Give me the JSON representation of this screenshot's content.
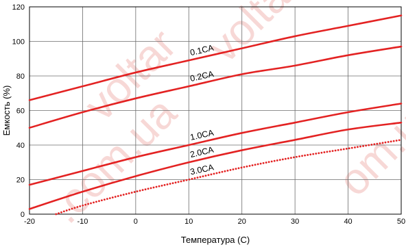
{
  "chart_data": {
    "type": "line",
    "xlabel": "Температура (С)",
    "ylabel": "Емкость (%)",
    "xlim": [
      -20,
      50
    ],
    "ylim": [
      0,
      120
    ],
    "x_ticks": [
      "-20",
      "-10",
      "0",
      "10",
      "20",
      "30",
      "40",
      "50"
    ],
    "y_ticks": [
      "0",
      "20",
      "40",
      "60",
      "80",
      "100",
      "120"
    ],
    "grid": true,
    "series": [
      {
        "name": "0.1CA",
        "line_style": "solid",
        "x": [
          -20,
          -10,
          0,
          10,
          20,
          30,
          40,
          50
        ],
        "y": [
          66,
          74,
          82,
          89,
          96,
          103,
          109,
          115
        ]
      },
      {
        "name": "0.2CA",
        "line_style": "solid",
        "x": [
          -20,
          -10,
          0,
          10,
          20,
          30,
          40,
          50
        ],
        "y": [
          50,
          59,
          67,
          74,
          81,
          86,
          92,
          97
        ]
      },
      {
        "name": "1.0CA",
        "line_style": "solid",
        "x": [
          -20,
          -10,
          0,
          10,
          20,
          30,
          40,
          50
        ],
        "y": [
          17,
          25,
          33,
          40,
          47,
          53,
          59,
          64
        ]
      },
      {
        "name": "2.0CA",
        "line_style": "solid",
        "x": [
          -20,
          -10,
          0,
          10,
          20,
          30,
          40,
          50
        ],
        "y": [
          3,
          13,
          22,
          30,
          37,
          43,
          49,
          53
        ]
      },
      {
        "name": "3.0CA",
        "line_style": "dotted",
        "x": [
          -15,
          -10,
          0,
          10,
          20,
          30,
          40,
          50
        ],
        "y": [
          0,
          5,
          13,
          20,
          27,
          33,
          38,
          43
        ]
      }
    ],
    "line_color": "#e32222",
    "watermark": "voltar.com.ua"
  }
}
